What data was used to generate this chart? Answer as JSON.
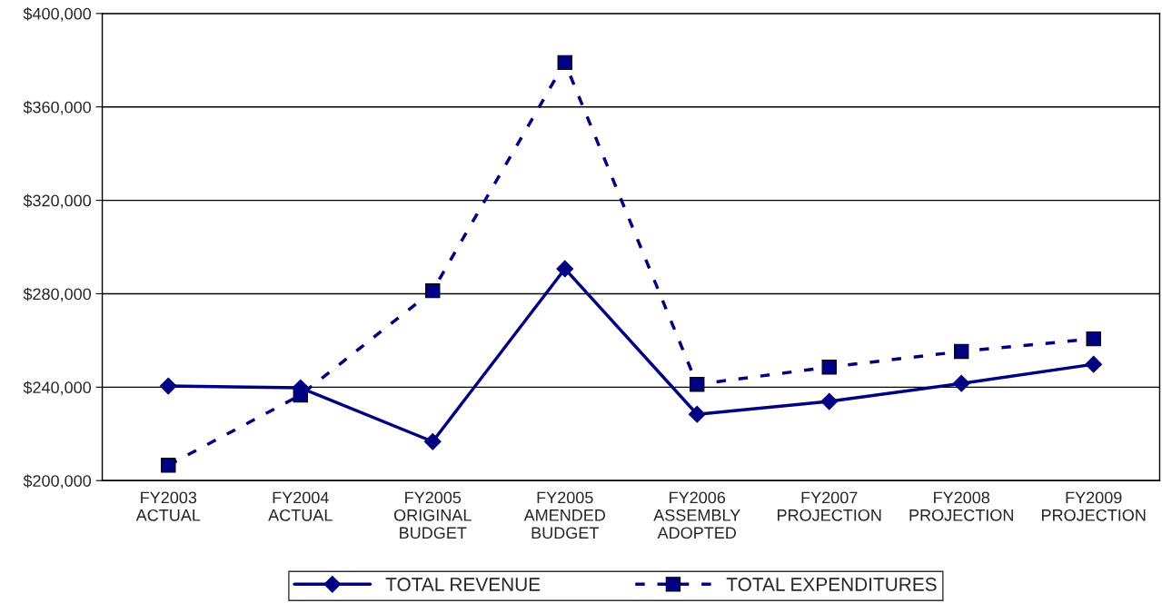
{
  "chart_data": {
    "type": "line",
    "categories": [
      "FY2003\nACTUAL",
      "FY2004\nACTUAL",
      "FY2005\nORIGINAL\nBUDGET",
      "FY2005\nAMENDED\nBUDGET",
      "FY2006\nASSEMBLY\nADOPTED",
      "FY2007\nPROJECTION",
      "FY2008\nPROJECTION",
      "FY2009\nPROJECTION"
    ],
    "series": [
      {
        "name": "TOTAL REVENUE",
        "color": "#000080",
        "marker": "diamond",
        "line_style": "solid",
        "values": [
          240500,
          239700,
          216700,
          290700,
          228400,
          233900,
          241600,
          249800
        ]
      },
      {
        "name": "TOTAL EXPENDITURES",
        "color": "#000080",
        "marker": "square",
        "line_style": "dashed",
        "values": [
          206600,
          236600,
          281300,
          379000,
          241200,
          248600,
          255300,
          260700
        ]
      }
    ],
    "ylim": [
      200000,
      400000
    ],
    "yticks": [
      {
        "value": 200000,
        "label": "$200,000"
      },
      {
        "value": 240000,
        "label": "$240,000"
      },
      {
        "value": 280000,
        "label": "$280,000"
      },
      {
        "value": 320000,
        "label": "$320,000"
      },
      {
        "value": 360000,
        "label": "$360,000"
      },
      {
        "value": 400000,
        "label": "$400,000"
      }
    ],
    "grid": "y",
    "legend": "bottom"
  }
}
